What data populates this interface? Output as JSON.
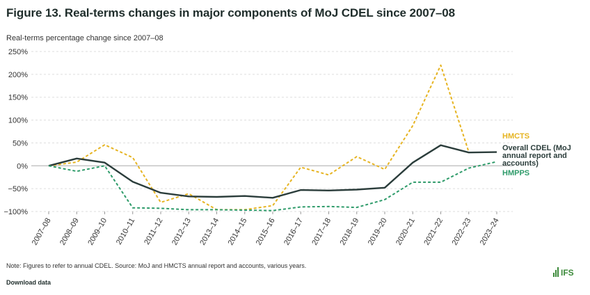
{
  "title": "Figure 13. Real-terms changes in major components of MoJ CDEL since 2007–08",
  "note": "Note: Figures to refer to annual CDEL. Source: MoJ and HMCTS annual report and accounts, various years.",
  "download_label": "Download data",
  "logo_text": "IFS",
  "colors": {
    "hmcts": "#e6b422",
    "overall": "#2b3d3b",
    "hmpps": "#2e9b6a",
    "grid": "#dddddd",
    "logo": "#3c8a3a"
  },
  "chart_data": {
    "type": "line",
    "title": "Figure 13. Real-terms changes in major components of MoJ CDEL since 2007–08",
    "ylabel": "Real-terms percentage change since 2007–08",
    "xlabel": "",
    "ylim": [
      -100,
      250
    ],
    "yticks": [
      -100,
      -50,
      0,
      50,
      100,
      150,
      200,
      250
    ],
    "ytick_labels": [
      "−100%",
      "−50%",
      "0%",
      "50%",
      "100%",
      "150%",
      "200%",
      "250%"
    ],
    "categories": [
      "2007–08",
      "2008–09",
      "2009–10",
      "2010–11",
      "2011–12",
      "2012–13",
      "2013–14",
      "2014–15",
      "2015–16",
      "2016–17",
      "2017–18",
      "2018–19",
      "2019–20",
      "2020–21",
      "2021–22",
      "2022–23",
      "2023–24"
    ],
    "series": [
      {
        "name": "HMCTS",
        "label_lines": [
          "HMCTS"
        ],
        "style": "dashed",
        "color_key": "hmcts",
        "values": [
          0,
          8,
          46,
          18,
          -80,
          -61,
          -96,
          -96,
          -87,
          -3,
          -20,
          20,
          -8,
          88,
          220,
          30,
          null
        ]
      },
      {
        "name": "Overall CDEL (MoJ annual report and accounts)",
        "label_lines": [
          "Overall CDEL (MoJ",
          "annual report and",
          "accounts)"
        ],
        "style": "solid",
        "color_key": "overall",
        "values": [
          0,
          16,
          7,
          -35,
          -59,
          -67,
          -68,
          -66,
          -70,
          -53,
          -54,
          -52,
          -48,
          7,
          45,
          29,
          30
        ]
      },
      {
        "name": "HMPPS",
        "label_lines": [
          "HMPPS"
        ],
        "style": "dashed",
        "color_key": "hmpps",
        "values": [
          0,
          -12,
          0,
          -92,
          -93,
          -96,
          -96,
          -97,
          -98,
          -90,
          -89,
          -91,
          -74,
          -36,
          -36,
          -5,
          9
        ]
      }
    ]
  }
}
